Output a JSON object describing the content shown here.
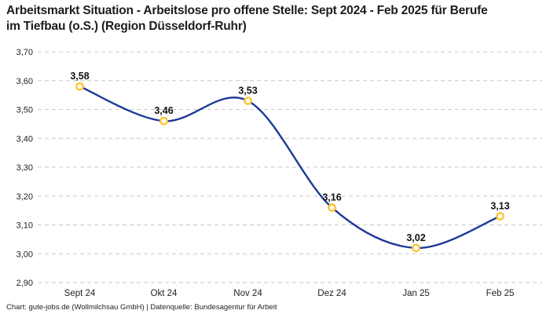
{
  "chart_data": {
    "type": "line",
    "title": "Arbeitsmarkt Situation - Arbeitslose pro offene Stelle: Sept 2024 - Feb 2025 für Berufe im Tiefbau (o.S.) (Region Düsseldorf-Ruhr)",
    "categories": [
      "Sept 24",
      "Okt 24",
      "Nov 24",
      "Dez 24",
      "Jan 25",
      "Feb 25"
    ],
    "values": [
      3.58,
      3.46,
      3.53,
      3.16,
      3.02,
      3.13
    ],
    "value_labels": [
      "3,58",
      "3,46",
      "3,53",
      "3,16",
      "3,02",
      "3,13"
    ],
    "y_ticks": [
      3.7,
      3.6,
      3.5,
      3.4,
      3.3,
      3.2,
      3.1,
      3.0,
      2.9
    ],
    "y_tick_labels": [
      "3,70",
      "3,60",
      "3,50",
      "3,40",
      "3,30",
      "3,20",
      "3,10",
      "3,00",
      "2,90"
    ],
    "ylim": [
      2.9,
      3.7
    ],
    "xlabel": "",
    "ylabel": "",
    "grid": "horizontal-dashed",
    "legend": "none",
    "colors": {
      "line": "#1e3a99",
      "marker_ring": "#ffc433",
      "marker_fill": "#ffffff",
      "gridline": "#c9c9c9",
      "tick_text": "#222222",
      "value_label_text": "#111111",
      "title_text": "#1d1d1d"
    }
  },
  "footer": "Chart: gute-jobs.de (Wollmilchsau GmbH) | Datenquelle: Bundesagentur für Arbeit"
}
